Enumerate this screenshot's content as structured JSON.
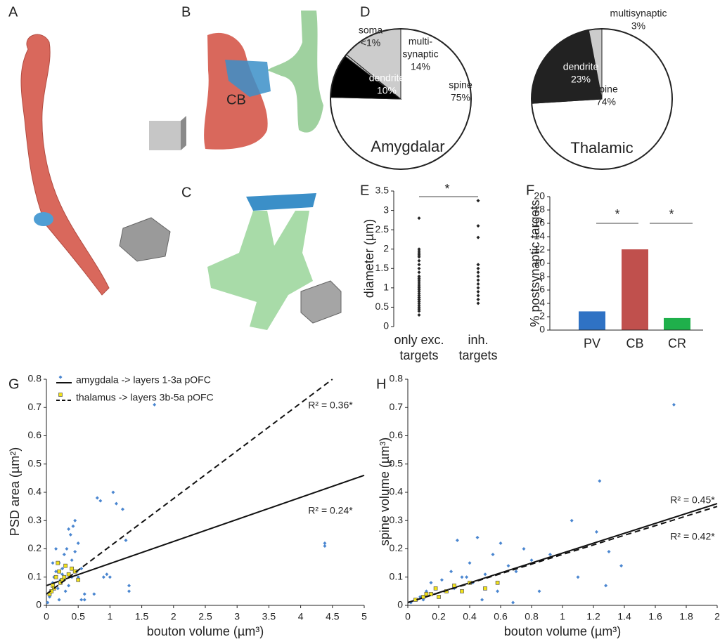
{
  "image_panels": [
    {
      "label": "A"
    },
    {
      "label": "B",
      "annotation": "CB"
    },
    {
      "label": "C"
    }
  ],
  "chart_data": [
    {
      "type": "pie",
      "panel": "D",
      "title": "Amygdalar",
      "categories": [
        [
          "spine"
        ],
        [
          "dendrite"
        ],
        [
          "soma"
        ],
        [
          "multi-",
          "synaptic"
        ]
      ],
      "values": [
        75,
        10,
        0.5,
        14
      ],
      "value_labels": [
        "75%",
        "10%",
        "<1%",
        "14%"
      ],
      "colors": [
        "#ffffff",
        "#000000",
        "#d0d0d0",
        "#cccccc"
      ]
    },
    {
      "type": "pie",
      "title": "Thalamic",
      "categories": [
        [
          "spine"
        ],
        [
          "dendrite"
        ],
        [
          "multisynaptic"
        ]
      ],
      "values": [
        74,
        23,
        3
      ],
      "value_labels": [
        "74%",
        "23%",
        "3%"
      ],
      "colors": [
        "#ffffff",
        "#222222",
        "#cccccc"
      ]
    },
    {
      "type": "strip",
      "panel": "E",
      "ylabel": "diameter (µm)",
      "categories": [
        [
          "only exc.",
          "targets"
        ],
        [
          "inh.",
          "targets"
        ]
      ],
      "values": [
        [
          0.3,
          0.4,
          0.45,
          0.5,
          0.55,
          0.6,
          0.65,
          0.7,
          0.75,
          0.8,
          0.85,
          0.9,
          0.95,
          1.0,
          1.05,
          1.1,
          1.15,
          1.2,
          1.25,
          1.3,
          1.4,
          1.5,
          1.6,
          1.7,
          1.8,
          1.85,
          1.9,
          1.95,
          2.0,
          2.8
        ],
        [
          0.6,
          0.7,
          0.8,
          0.9,
          1.0,
          1.1,
          1.2,
          1.3,
          1.4,
          1.5,
          1.6,
          2.3,
          2.6,
          3.25
        ]
      ],
      "color": "#222222",
      "ylim": [
        0,
        3.5
      ],
      "yticks": [
        0,
        0.5,
        1,
        1.5,
        2,
        2.5,
        3,
        3.5
      ],
      "significance": [
        "*"
      ]
    },
    {
      "type": "bar",
      "panel": "F",
      "ylabel": "% postsynaptic targets",
      "categories": [
        "PV",
        "CB",
        "CR"
      ],
      "values": [
        2.8,
        12.1,
        1.8
      ],
      "colors": [
        "#2f72c4",
        "#c0504d",
        "#1fb04b"
      ],
      "ylim": [
        0,
        20
      ],
      "yticks": [
        0,
        2,
        4,
        6,
        8,
        10,
        12,
        14,
        16,
        18,
        20
      ],
      "significance": [
        "*",
        "*"
      ]
    },
    {
      "type": "scatter",
      "panel": "G",
      "xlabel": "bouton volume (µm³)",
      "ylabel": "PSD area (µm²)",
      "xlim": [
        0,
        5
      ],
      "xticks": [
        0,
        0.5,
        1,
        1.5,
        2,
        2.5,
        3,
        3.5,
        4,
        4.5,
        5
      ],
      "ylim": [
        0,
        0.8
      ],
      "yticks": [
        0,
        0.1,
        0.2,
        0.3,
        0.4,
        0.5,
        0.6,
        0.7,
        0.8
      ],
      "legend": "top-left",
      "series": [
        {
          "name": "amygdala -> layers 1-3a pOFC",
          "color": "#4a86d0",
          "marker": "diamond",
          "dash": false,
          "x": [
            0.05,
            0.08,
            0.1,
            0.12,
            0.15,
            0.18,
            0.2,
            0.22,
            0.25,
            0.28,
            0.3,
            0.32,
            0.35,
            0.38,
            0.4,
            0.42,
            0.45,
            0.48,
            0.5,
            0.55,
            0.6,
            0.3,
            0.35,
            0.4,
            0.45,
            0.2,
            0.15,
            0.5,
            0.25,
            0.1,
            0.8,
            0.85,
            0.9,
            1.05,
            1.1,
            1.2,
            1.25,
            1.3,
            1.7,
            4.38,
            4.38,
            0.6,
            0.75,
            0.95,
            1.0,
            1.3,
            0.55,
            0.02
          ],
          "values": [
            0.03,
            0.05,
            0.08,
            0.1,
            0.12,
            0.06,
            0.15,
            0.09,
            0.11,
            0.18,
            0.14,
            0.2,
            0.07,
            0.25,
            0.16,
            0.28,
            0.3,
            0.12,
            0.22,
            0.13,
            0.04,
            0.05,
            0.27,
            0.1,
            0.19,
            0.02,
            0.2,
            0.1,
            0.13,
            0.15,
            0.38,
            0.37,
            0.1,
            0.4,
            0.36,
            0.34,
            0.23,
            0.07,
            0.71,
            0.22,
            0.21,
            0.02,
            0.04,
            0.11,
            0.1,
            0.05,
            0.02,
            0.01
          ],
          "fit_x": [
            0,
            5
          ],
          "fit_y": [
            0.07,
            0.46
          ],
          "r2_label": "R² = 0.24*"
        },
        {
          "name": "thalamus -> layers 3b-5a pOFC",
          "color": "#f2e21a",
          "marker": "square",
          "dash": true,
          "x": [
            0.05,
            0.1,
            0.15,
            0.2,
            0.25,
            0.3,
            0.35,
            0.4,
            0.12,
            0.18,
            0.22,
            0.28,
            0.08,
            0.45,
            0.5
          ],
          "values": [
            0.04,
            0.07,
            0.1,
            0.12,
            0.09,
            0.14,
            0.11,
            0.13,
            0.06,
            0.15,
            0.08,
            0.1,
            0.05,
            0.12,
            0.09
          ],
          "fit_x": [
            0,
            4.5
          ],
          "fit_y": [
            0.04,
            0.8
          ],
          "r2_label": "R² = 0.36*"
        }
      ]
    },
    {
      "type": "scatter",
      "panel": "H",
      "xlabel": "bouton volume (µm³)",
      "ylabel": "spine volume (µm³)",
      "xlim": [
        0,
        2
      ],
      "xticks": [
        0,
        0.2,
        0.4,
        0.6,
        0.8,
        1,
        1.2,
        1.4,
        1.6,
        1.8,
        2
      ],
      "ylim": [
        0,
        0.8
      ],
      "yticks": [
        0,
        0.1,
        0.2,
        0.3,
        0.4,
        0.5,
        0.6,
        0.7,
        0.8
      ],
      "series": [
        {
          "color": "#4a86d0",
          "marker": "diamond",
          "dash": false,
          "x": [
            0.02,
            0.05,
            0.08,
            0.1,
            0.12,
            0.15,
            0.18,
            0.2,
            0.22,
            0.25,
            0.28,
            0.3,
            0.32,
            0.35,
            0.4,
            0.42,
            0.45,
            0.5,
            0.55,
            0.6,
            0.65,
            0.7,
            0.75,
            0.8,
            0.85,
            0.92,
            1.06,
            1.1,
            1.22,
            1.24,
            1.28,
            1.3,
            1.38,
            1.72,
            0.58,
            0.48,
            0.38,
            0.3,
            0.15,
            0.68
          ],
          "values": [
            0.01,
            0.02,
            0.03,
            0.02,
            0.05,
            0.04,
            0.06,
            0.03,
            0.09,
            0.05,
            0.12,
            0.07,
            0.23,
            0.1,
            0.15,
            0.08,
            0.24,
            0.11,
            0.18,
            0.22,
            0.14,
            0.12,
            0.2,
            0.16,
            0.05,
            0.18,
            0.3,
            0.1,
            0.26,
            0.44,
            0.07,
            0.19,
            0.14,
            0.71,
            0.05,
            0.02,
            0.1,
            0.06,
            0.08,
            0.01
          ],
          "fit_x": [
            0,
            2
          ],
          "fit_y": [
            0.01,
            0.36
          ],
          "r2_label": "R² = 0.45*"
        },
        {
          "color": "#f2e21a",
          "marker": "square",
          "dash": true,
          "x": [
            0.05,
            0.1,
            0.15,
            0.2,
            0.25,
            0.3,
            0.4,
            0.5,
            0.58,
            0.12,
            0.18,
            0.35
          ],
          "values": [
            0.02,
            0.03,
            0.04,
            0.03,
            0.05,
            0.07,
            0.08,
            0.06,
            0.08,
            0.04,
            0.06,
            0.05
          ],
          "fit_x": [
            0,
            2
          ],
          "fit_y": [
            0.01,
            0.35
          ],
          "r2_label": "R² = 0.42*"
        }
      ]
    }
  ]
}
